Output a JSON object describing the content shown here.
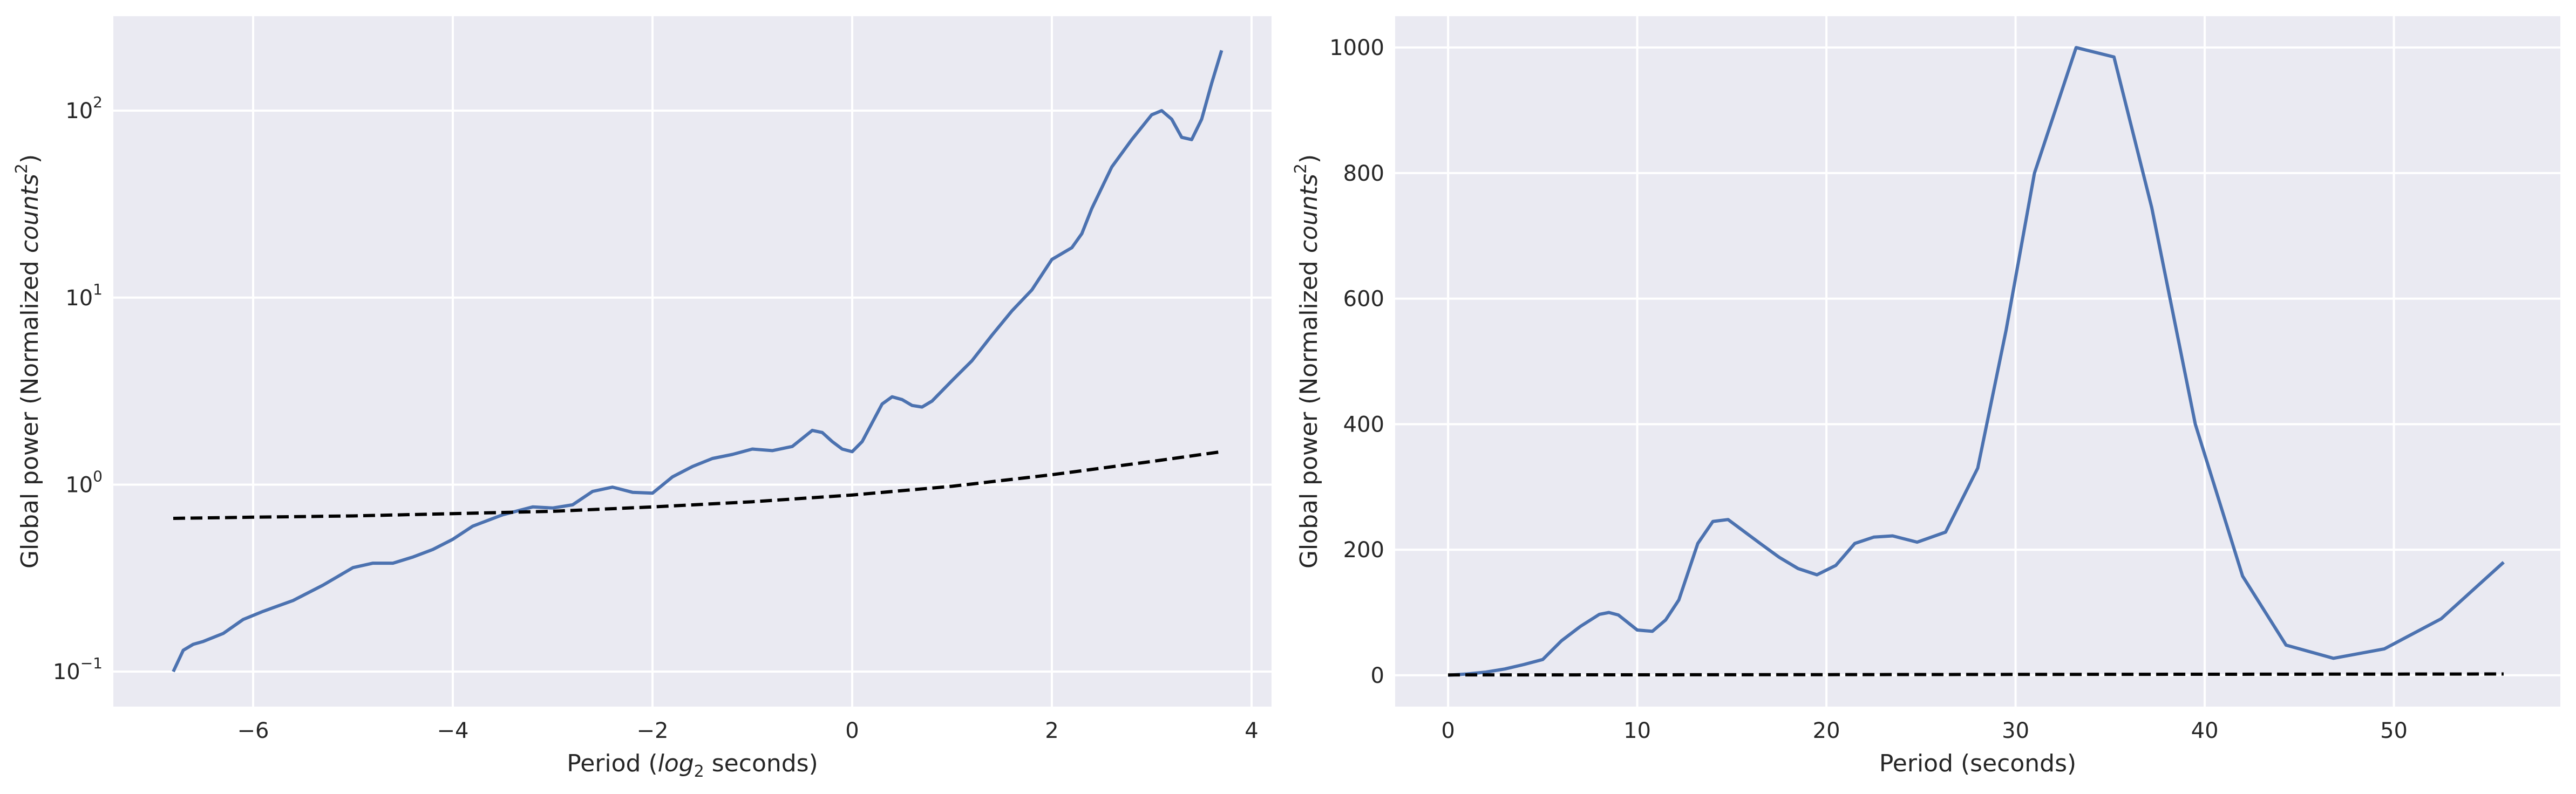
{
  "chart_data": [
    {
      "type": "line",
      "yscale": "log",
      "xlabel_text": "Period (",
      "xlabel_math": "log",
      "xlabel_sub": "2",
      "xlabel_suffix": " seconds)",
      "ylabel_text": "Global power (Normalized ",
      "ylabel_math": "counts",
      "ylabel_sup": "2",
      "ylabel_suffix": ")",
      "xlim": [
        -7.4,
        4.2
      ],
      "ylim": [
        0.065,
        320
      ],
      "grid": true,
      "x_ticks": [
        -6,
        -4,
        -2,
        0,
        2,
        4
      ],
      "x_tick_labels": [
        "−6",
        "−4",
        "−2",
        "0",
        "2",
        "4"
      ],
      "y_ticks": [
        0.1,
        1,
        10,
        100
      ],
      "y_tick_bases": [
        "10",
        "10",
        "10",
        "10"
      ],
      "y_tick_exponents": [
        "−1",
        "0",
        "1",
        "2"
      ],
      "series": [
        {
          "color": "#4c72b0",
          "style": "solid",
          "x": [
            -6.8,
            -6.7,
            -6.6,
            -6.5,
            -6.3,
            -6.1,
            -5.9,
            -5.6,
            -5.3,
            -5.0,
            -4.8,
            -4.6,
            -4.4,
            -4.2,
            -4.0,
            -3.8,
            -3.5,
            -3.2,
            -3.0,
            -2.8,
            -2.6,
            -2.4,
            -2.2,
            -2.0,
            -1.8,
            -1.6,
            -1.4,
            -1.2,
            -1.0,
            -0.8,
            -0.6,
            -0.4,
            -0.3,
            -0.2,
            -0.1,
            0.0,
            0.1,
            0.3,
            0.4,
            0.5,
            0.6,
            0.7,
            0.8,
            1.0,
            1.2,
            1.4,
            1.6,
            1.8,
            2.0,
            2.2,
            2.3,
            2.4,
            2.6,
            2.8,
            3.0,
            3.1,
            3.2,
            3.3,
            3.4,
            3.5,
            3.6,
            3.7
          ],
          "y": [
            0.1,
            0.13,
            0.14,
            0.145,
            0.16,
            0.19,
            0.21,
            0.24,
            0.29,
            0.36,
            0.38,
            0.38,
            0.41,
            0.45,
            0.51,
            0.6,
            0.69,
            0.76,
            0.75,
            0.78,
            0.92,
            0.97,
            0.91,
            0.9,
            1.1,
            1.25,
            1.38,
            1.45,
            1.55,
            1.52,
            1.6,
            1.95,
            1.9,
            1.7,
            1.55,
            1.5,
            1.7,
            2.7,
            2.95,
            2.85,
            2.65,
            2.6,
            2.8,
            3.6,
            4.6,
            6.3,
            8.5,
            11.0,
            16.0,
            18.5,
            22.0,
            30.0,
            50.0,
            70.0,
            95.0,
            100.0,
            90.0,
            72.0,
            70.0,
            90.0,
            140.0,
            210.0
          ]
        },
        {
          "color": "#000000",
          "style": "dashed",
          "x": [
            -6.8,
            -6.0,
            -5.0,
            -4.0,
            -3.0,
            -2.0,
            -1.0,
            0.0,
            1.0,
            2.0,
            3.0,
            3.7
          ],
          "y": [
            0.66,
            0.67,
            0.68,
            0.7,
            0.72,
            0.76,
            0.81,
            0.88,
            0.98,
            1.13,
            1.33,
            1.5
          ]
        }
      ]
    },
    {
      "type": "line",
      "yscale": "linear",
      "xlabel_text": "Period (seconds)",
      "ylabel_text": "Global power (Normalized ",
      "ylabel_math": "counts",
      "ylabel_sup": "2",
      "ylabel_suffix": ")",
      "xlim": [
        -2.8,
        58.8
      ],
      "ylim": [
        -50,
        1050
      ],
      "grid": true,
      "x_ticks": [
        0,
        10,
        20,
        30,
        40,
        50
      ],
      "x_tick_labels": [
        "0",
        "10",
        "20",
        "30",
        "40",
        "50"
      ],
      "y_ticks": [
        0,
        200,
        400,
        600,
        800,
        1000
      ],
      "y_tick_labels": [
        "0",
        "200",
        "400",
        "600",
        "800",
        "1000"
      ],
      "series": [
        {
          "color": "#4c72b0",
          "style": "solid",
          "x": [
            0.0,
            1.0,
            2.0,
            3.0,
            4.0,
            5.0,
            6.0,
            7.0,
            8.0,
            8.5,
            9.0,
            10.0,
            10.8,
            11.5,
            12.2,
            13.2,
            14.0,
            14.8,
            16.5,
            17.5,
            18.5,
            19.5,
            20.5,
            21.5,
            22.5,
            23.5,
            24.8,
            26.3,
            28.0,
            29.5,
            31.0,
            33.2,
            35.2,
            37.2,
            39.5,
            42.0,
            44.3,
            46.8,
            49.5,
            52.5,
            55.8
          ],
          "y": [
            0,
            2,
            5,
            10,
            17,
            25,
            55,
            78,
            97,
            100,
            96,
            72,
            70,
            88,
            120,
            210,
            245,
            248,
            210,
            188,
            170,
            160,
            175,
            210,
            220,
            222,
            212,
            228,
            330,
            550,
            800,
            1000,
            985,
            745,
            400,
            158,
            48,
            27,
            42,
            90,
            180
          ]
        },
        {
          "color": "#000000",
          "style": "dashed",
          "x": [
            0.0,
            10.0,
            20.0,
            30.0,
            40.0,
            50.0,
            55.8
          ],
          "y": [
            0.5,
            0.7,
            1.0,
            1.3,
            1.6,
            1.8,
            2.0
          ]
        }
      ]
    }
  ]
}
